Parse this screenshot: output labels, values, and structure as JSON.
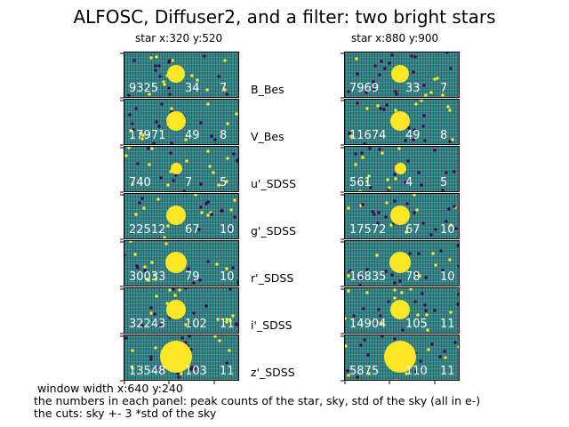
{
  "title": "ALFOSC, Diffuser2, and a filter: two bright stars",
  "columns": [
    {
      "title": "star x:320 y:520"
    },
    {
      "title": "star x:880 y:900"
    }
  ],
  "filters": [
    {
      "name": "B_Bes",
      "left": {
        "peak": "9325",
        "sky": "34",
        "std": "7"
      },
      "right": {
        "peak": "7969",
        "sky": "33",
        "std": "7"
      }
    },
    {
      "name": "V_Bes",
      "left": {
        "peak": "17971",
        "sky": "49",
        "std": "8"
      },
      "right": {
        "peak": "11674",
        "sky": "49",
        "std": "8"
      }
    },
    {
      "name": "u'_SDSS",
      "left": {
        "peak": "740",
        "sky": "7",
        "std": "5"
      },
      "right": {
        "peak": "561",
        "sky": "4",
        "std": "5"
      }
    },
    {
      "name": "g'_SDSS",
      "left": {
        "peak": "22512",
        "sky": "67",
        "std": "10"
      },
      "right": {
        "peak": "17572",
        "sky": "67",
        "std": "10"
      }
    },
    {
      "name": "r'_SDSS",
      "left": {
        "peak": "30033",
        "sky": "79",
        "std": "10"
      },
      "right": {
        "peak": "16835",
        "sky": "78",
        "std": "10"
      }
    },
    {
      "name": "i'_SDSS",
      "left": {
        "peak": "32243",
        "sky": "102",
        "std": "11"
      },
      "right": {
        "peak": "14904",
        "sky": "105",
        "std": "11"
      }
    },
    {
      "name": "z'_SDSS",
      "left": {
        "peak": "13548",
        "sky": "103",
        "std": "11"
      },
      "right": {
        "peak": "5875",
        "sky": "110",
        "std": "11"
      }
    }
  ],
  "footer": {
    "line1": " window width x:640 y:240",
    "line2": "the numbers in each panel: peak counts of the star, sky, std of the sky (all in e-)",
    "line3": "the cuts: sky +- 3 *std of the sky"
  },
  "colors": {
    "colormap_low": "#440154",
    "colormap_mid": "#21918c",
    "colormap_high": "#fde725"
  }
}
